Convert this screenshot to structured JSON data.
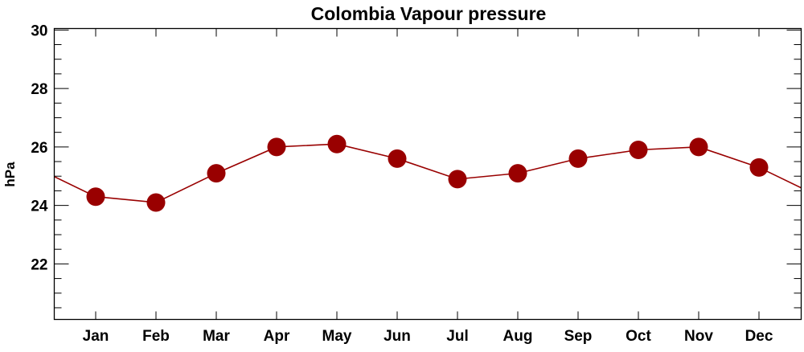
{
  "chart_data": {
    "type": "line",
    "title": "Colombia Vapour pressure",
    "xlabel": "",
    "ylabel": "hPa",
    "categories": [
      "Jan",
      "Feb",
      "Mar",
      "Apr",
      "May",
      "Jun",
      "Jul",
      "Aug",
      "Sep",
      "Oct",
      "Nov",
      "Dec"
    ],
    "series": [
      {
        "name": "Vapour pressure",
        "values": [
          24.3,
          24.1,
          25.1,
          26.0,
          26.1,
          25.6,
          24.9,
          25.1,
          25.6,
          25.9,
          26.0,
          25.3
        ]
      }
    ],
    "ylim": [
      20.1,
      30.05
    ],
    "yticks": [
      22,
      24,
      26,
      28,
      30
    ],
    "yminor_step": 0.5,
    "grid": false,
    "color": "#990000"
  }
}
